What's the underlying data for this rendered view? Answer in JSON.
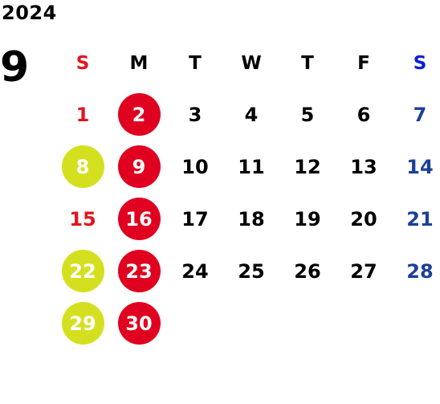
{
  "year": "2024",
  "month": "9",
  "weekdays": [
    "S",
    "M",
    "T",
    "W",
    "T",
    "F",
    "S"
  ],
  "colors": {
    "sunday_text": "#e1151f",
    "saturday_text": "#1d3f97",
    "saturday_header": "#0b1fd6",
    "circle_red": "#e0001f",
    "circle_lime": "#d4e01f"
  },
  "weeks": [
    [
      {
        "d": "1",
        "mark": "none"
      },
      {
        "d": "2",
        "mark": "red"
      },
      {
        "d": "3",
        "mark": "none"
      },
      {
        "d": "4",
        "mark": "none"
      },
      {
        "d": "5",
        "mark": "none"
      },
      {
        "d": "6",
        "mark": "none"
      },
      {
        "d": "7",
        "mark": "none"
      }
    ],
    [
      {
        "d": "8",
        "mark": "lime"
      },
      {
        "d": "9",
        "mark": "red"
      },
      {
        "d": "10",
        "mark": "none"
      },
      {
        "d": "11",
        "mark": "none"
      },
      {
        "d": "12",
        "mark": "none"
      },
      {
        "d": "13",
        "mark": "none"
      },
      {
        "d": "14",
        "mark": "none"
      }
    ],
    [
      {
        "d": "15",
        "mark": "none"
      },
      {
        "d": "16",
        "mark": "red"
      },
      {
        "d": "17",
        "mark": "none"
      },
      {
        "d": "18",
        "mark": "none"
      },
      {
        "d": "19",
        "mark": "none"
      },
      {
        "d": "20",
        "mark": "none"
      },
      {
        "d": "21",
        "mark": "none"
      }
    ],
    [
      {
        "d": "22",
        "mark": "lime"
      },
      {
        "d": "23",
        "mark": "red"
      },
      {
        "d": "24",
        "mark": "none"
      },
      {
        "d": "25",
        "mark": "none"
      },
      {
        "d": "26",
        "mark": "none"
      },
      {
        "d": "27",
        "mark": "none"
      },
      {
        "d": "28",
        "mark": "none"
      }
    ],
    [
      {
        "d": "29",
        "mark": "lime"
      },
      {
        "d": "30",
        "mark": "red"
      },
      {
        "d": "",
        "mark": "none"
      },
      {
        "d": "",
        "mark": "none"
      },
      {
        "d": "",
        "mark": "none"
      },
      {
        "d": "",
        "mark": "none"
      },
      {
        "d": "",
        "mark": "none"
      }
    ]
  ]
}
